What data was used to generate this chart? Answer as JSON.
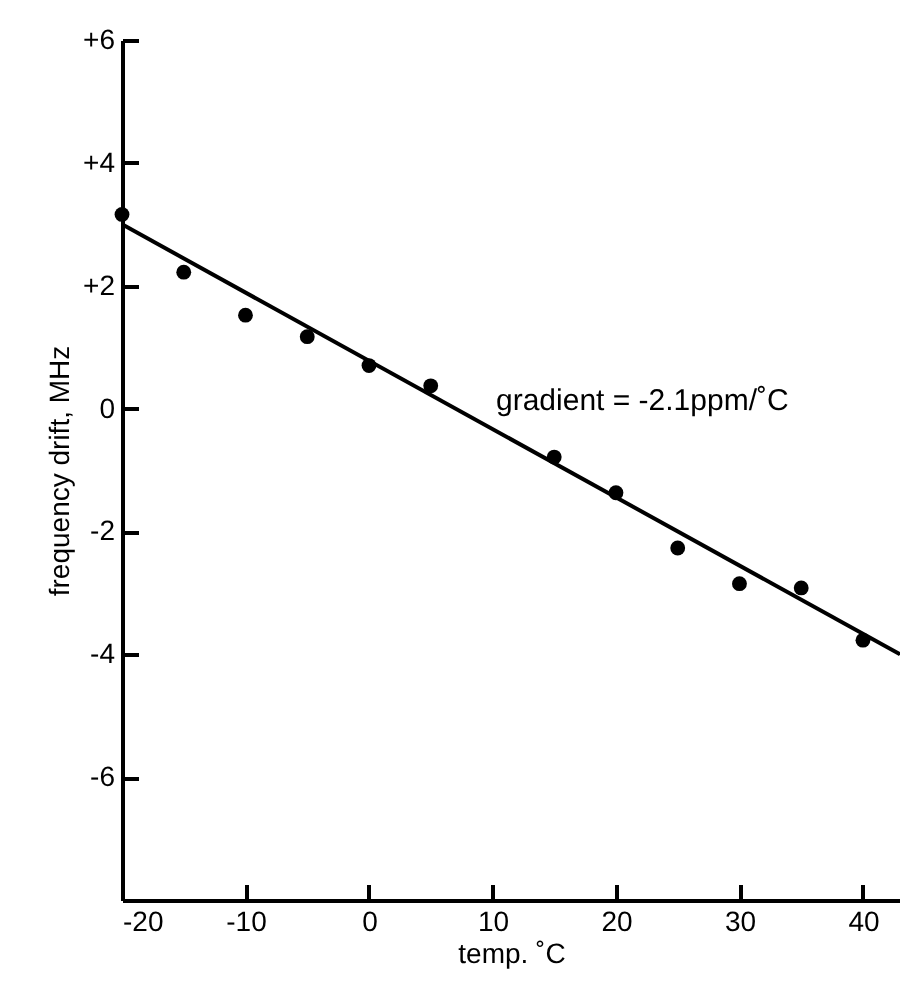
{
  "chart_data": {
    "type": "scatter",
    "xlabel": "temp. ˚C",
    "ylabel": "frequency drift, MHz",
    "xlim": [
      -20,
      43
    ],
    "ylim": [
      -8,
      6
    ],
    "xticks": [
      -20,
      -10,
      0,
      10,
      20,
      30,
      40
    ],
    "yticks": [
      {
        "value": 6,
        "label": "+6"
      },
      {
        "value": 4,
        "label": "+4"
      },
      {
        "value": 2,
        "label": "+2"
      },
      0,
      -2,
      -4,
      -6
    ],
    "x": [
      -20,
      -15,
      -10,
      -5,
      0,
      5,
      15,
      20,
      25,
      30,
      35,
      40
    ],
    "series": [
      {
        "color": "#000000",
        "marker": "circle",
        "values": [
          3.16,
          2.22,
          1.52,
          1.17,
          0.7,
          0.37,
          -0.79,
          -1.37,
          -2.27,
          -2.85,
          -2.92,
          -3.77
        ]
      },
      {
        "type": "line",
        "color": "#000000",
        "marker": "none",
        "line_style": "solid",
        "x": [
          -20,
          43
        ],
        "values": [
          3.0,
          -4.0
        ]
      }
    ],
    "annotations": [
      "gradient = -2.1ppm/˚C"
    ],
    "grid": false
  }
}
